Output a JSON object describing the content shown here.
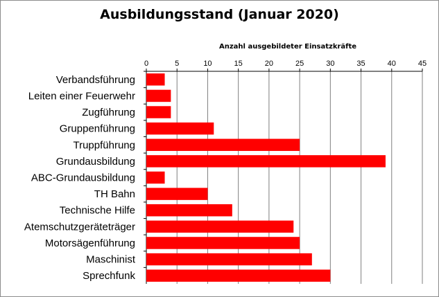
{
  "chart_data": {
    "type": "bar",
    "orientation": "horizontal",
    "title": "Ausbildungsstand (Januar 2020)",
    "xlabel": "Anzahl ausgebildeter Einsatzkräfte",
    "ylabel": "",
    "xlim": [
      0,
      45
    ],
    "ticks": [
      "0",
      "5",
      "10",
      "15",
      "20",
      "25",
      "30",
      "35",
      "40",
      "45"
    ],
    "categories": [
      "Verbandsführung",
      "Leiten einer Feuerwehr",
      "Zugführung",
      "Gruppenführung",
      "Truppführung",
      "Grundausbildung",
      "ABC-Grundausbildung",
      "TH Bahn",
      "Technische Hilfe",
      "Atemschutzgeräteträger",
      "Motorsägenführung",
      "Maschinist",
      "Sprechfunk"
    ],
    "values": [
      3,
      4,
      4,
      11,
      25,
      39,
      3,
      10,
      14,
      24,
      25,
      27,
      30
    ],
    "bar_color": "#ff0000",
    "grid": true,
    "grid_color": "#7f7f7f",
    "legend": "none",
    "axis_position": "top"
  }
}
